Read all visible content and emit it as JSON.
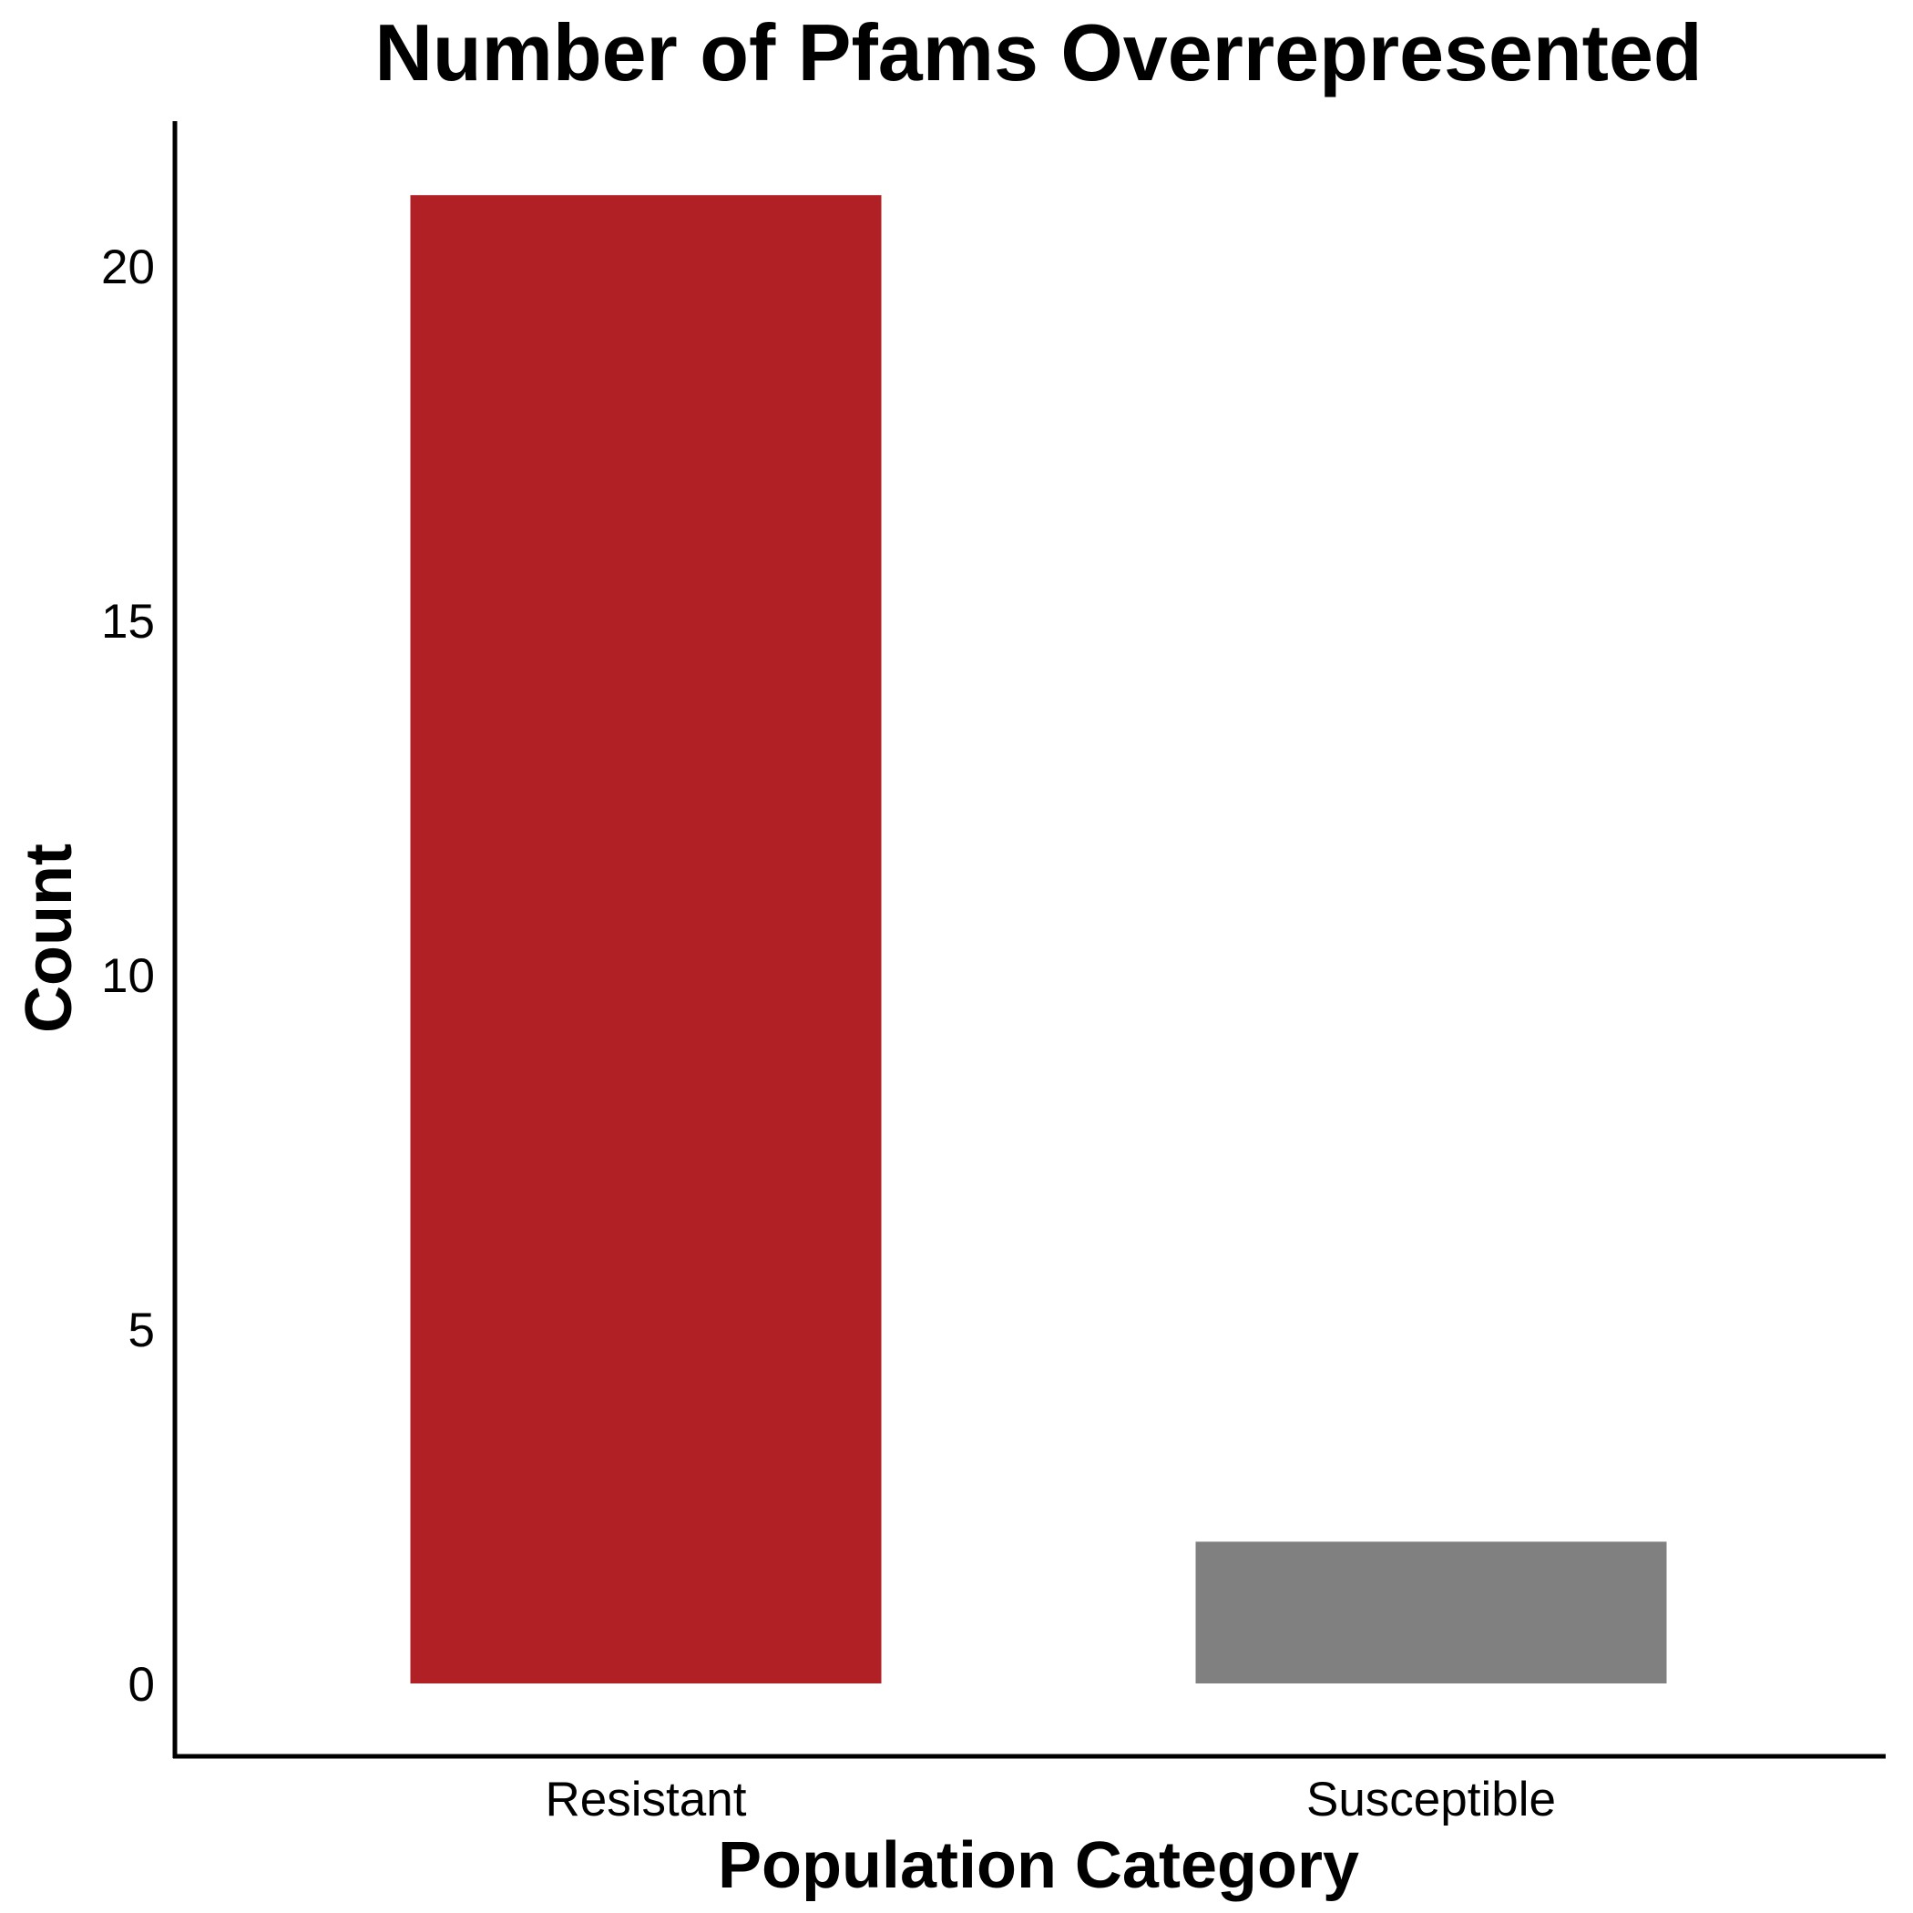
{
  "chart_data": {
    "type": "bar",
    "title": "Number of Pfams Overrepresented",
    "xlabel": "Population Category",
    "ylabel": "Count",
    "categories": [
      "Resistant",
      "Susceptible"
    ],
    "values": [
      21,
      2
    ],
    "colors": [
      "#B12024",
      "#808080"
    ],
    "ylim": [
      -1,
      22
    ],
    "yticks": [
      0,
      5,
      10,
      15,
      20
    ],
    "grid": false,
    "legend": "none"
  }
}
